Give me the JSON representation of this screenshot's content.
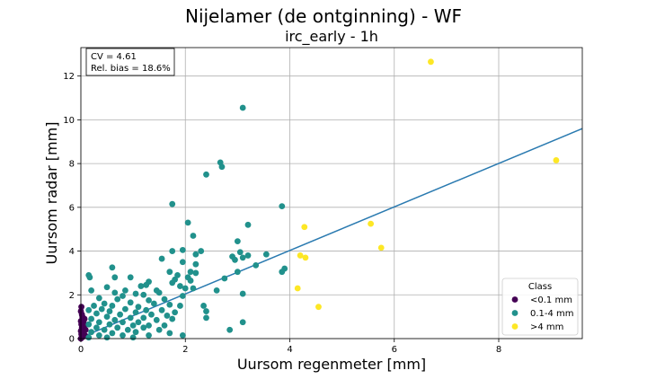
{
  "chart_data": {
    "type": "scatter",
    "title": "Nijelamer (de ontginning) - WF",
    "subtitle": "irc_early - 1h",
    "xlabel": "Uursom regenmeter [mm]",
    "ylabel": "Uursom radar [mm]",
    "xlim": [
      0,
      9.6
    ],
    "ylim": [
      0,
      13.3
    ],
    "xticks": [
      0,
      2,
      4,
      6,
      8
    ],
    "yticks": [
      0,
      2,
      4,
      6,
      8,
      10,
      12
    ],
    "grid": true,
    "stats_box": [
      "CV = 4.61",
      "Rel. bias = 18.6%"
    ],
    "legend": {
      "title": "Class",
      "placement": "lower-right"
    },
    "regression_line": {
      "color": "#2a7ab0",
      "points": [
        [
          0,
          0.05
        ],
        [
          9.6,
          9.6
        ]
      ]
    },
    "series": [
      {
        "name": "<0.1 mm",
        "color": "#440154",
        "points": [
          [
            0.0,
            0.0
          ],
          [
            0.01,
            0.2
          ],
          [
            0.0,
            0.35
          ],
          [
            0.02,
            0.5
          ],
          [
            0.01,
            0.65
          ],
          [
            0.0,
            0.8
          ],
          [
            0.03,
            0.95
          ],
          [
            0.02,
            1.1
          ],
          [
            0.0,
            1.25
          ],
          [
            0.01,
            1.45
          ],
          [
            0.05,
            0.1
          ],
          [
            0.04,
            0.3
          ],
          [
            0.06,
            0.55
          ],
          [
            0.05,
            0.75
          ],
          [
            0.07,
            0.9
          ],
          [
            0.08,
            0.15
          ],
          [
            0.03,
            1.0
          ],
          [
            0.09,
            0.4
          ],
          [
            0.02,
            0.05
          ],
          [
            0.06,
            0.2
          ]
        ]
      },
      {
        "name": "0.1-4 mm",
        "color": "#21918c",
        "points": [
          [
            3.1,
            10.55
          ],
          [
            2.67,
            8.05
          ],
          [
            2.7,
            7.85
          ],
          [
            2.4,
            7.5
          ],
          [
            1.75,
            6.15
          ],
          [
            3.85,
            6.05
          ],
          [
            2.05,
            5.3
          ],
          [
            3.2,
            5.2
          ],
          [
            2.15,
            4.7
          ],
          [
            3.0,
            4.45
          ],
          [
            1.95,
            4.05
          ],
          [
            1.75,
            4.0
          ],
          [
            2.3,
            4.0
          ],
          [
            3.05,
            3.95
          ],
          [
            2.2,
            3.85
          ],
          [
            3.55,
            3.85
          ],
          [
            3.2,
            3.8
          ],
          [
            2.9,
            3.75
          ],
          [
            3.1,
            3.7
          ],
          [
            2.95,
            3.6
          ],
          [
            1.55,
            3.65
          ],
          [
            1.95,
            3.5
          ],
          [
            2.2,
            3.4
          ],
          [
            3.35,
            3.35
          ],
          [
            0.6,
            3.25
          ],
          [
            3.9,
            3.2
          ],
          [
            1.7,
            3.05
          ],
          [
            2.1,
            3.05
          ],
          [
            3.0,
            3.05
          ],
          [
            3.85,
            3.05
          ],
          [
            2.2,
            3.0
          ],
          [
            0.15,
            2.9
          ],
          [
            0.17,
            2.8
          ],
          [
            1.85,
            2.9
          ],
          [
            2.05,
            2.8
          ],
          [
            0.65,
            2.8
          ],
          [
            0.95,
            2.8
          ],
          [
            2.75,
            2.75
          ],
          [
            1.8,
            2.7
          ],
          [
            2.1,
            2.65
          ],
          [
            1.3,
            2.6
          ],
          [
            1.75,
            2.55
          ],
          [
            1.9,
            2.4
          ],
          [
            1.25,
            2.45
          ],
          [
            0.5,
            2.35
          ],
          [
            1.15,
            2.4
          ],
          [
            2.0,
            2.3
          ],
          [
            2.15,
            2.3
          ],
          [
            0.2,
            2.2
          ],
          [
            1.45,
            2.2
          ],
          [
            0.65,
            2.1
          ],
          [
            0.85,
            2.2
          ],
          [
            1.05,
            2.05
          ],
          [
            2.6,
            2.2
          ],
          [
            1.5,
            2.1
          ],
          [
            3.1,
            2.05
          ],
          [
            0.8,
            1.95
          ],
          [
            1.2,
            2.0
          ],
          [
            1.95,
            1.95
          ],
          [
            0.35,
            1.85
          ],
          [
            0.7,
            1.8
          ],
          [
            1.3,
            1.75
          ],
          [
            1.6,
            1.8
          ],
          [
            0.45,
            1.6
          ],
          [
            0.95,
            1.65
          ],
          [
            1.4,
            1.6
          ],
          [
            1.7,
            1.55
          ],
          [
            0.25,
            1.5
          ],
          [
            0.6,
            1.5
          ],
          [
            1.1,
            1.45
          ],
          [
            1.9,
            1.5
          ],
          [
            2.35,
            1.5
          ],
          [
            0.4,
            1.35
          ],
          [
            0.85,
            1.35
          ],
          [
            1.25,
            1.3
          ],
          [
            1.55,
            1.3
          ],
          [
            0.15,
            1.3
          ],
          [
            0.55,
            1.25
          ],
          [
            1.05,
            1.2
          ],
          [
            1.8,
            1.2
          ],
          [
            2.4,
            1.25
          ],
          [
            0.3,
            1.15
          ],
          [
            0.75,
            1.1
          ],
          [
            1.35,
            1.1
          ],
          [
            1.65,
            1.05
          ],
          [
            0.5,
            1.0
          ],
          [
            0.95,
            0.95
          ],
          [
            1.2,
            0.95
          ],
          [
            2.4,
            0.95
          ],
          [
            0.2,
            0.9
          ],
          [
            0.65,
            0.85
          ],
          [
            1.45,
            0.85
          ],
          [
            1.75,
            0.9
          ],
          [
            0.35,
            0.75
          ],
          [
            0.8,
            0.75
          ],
          [
            1.1,
            0.75
          ],
          [
            3.1,
            0.75
          ],
          [
            0.15,
            0.65
          ],
          [
            0.55,
            0.65
          ],
          [
            1.0,
            0.6
          ],
          [
            1.3,
            0.6
          ],
          [
            1.6,
            0.6
          ],
          [
            0.3,
            0.5
          ],
          [
            0.7,
            0.5
          ],
          [
            1.2,
            0.5
          ],
          [
            0.45,
            0.4
          ],
          [
            0.9,
            0.4
          ],
          [
            1.5,
            0.4
          ],
          [
            2.85,
            0.4
          ],
          [
            0.2,
            0.3
          ],
          [
            0.6,
            0.25
          ],
          [
            1.05,
            0.3
          ],
          [
            1.7,
            0.25
          ],
          [
            0.35,
            0.15
          ],
          [
            0.8,
            0.15
          ],
          [
            1.3,
            0.15
          ],
          [
            1.95,
            0.15
          ],
          [
            0.15,
            0.05
          ],
          [
            0.5,
            0.05
          ],
          [
            1.0,
            0.05
          ]
        ]
      },
      {
        "name": ">4 mm",
        "color": "#fde725",
        "points": [
          [
            6.7,
            12.65
          ],
          [
            9.1,
            8.15
          ],
          [
            5.55,
            5.25
          ],
          [
            4.28,
            5.1
          ],
          [
            5.75,
            4.15
          ],
          [
            4.2,
            3.8
          ],
          [
            4.3,
            3.7
          ],
          [
            4.15,
            2.3
          ],
          [
            4.55,
            1.45
          ]
        ]
      }
    ]
  }
}
